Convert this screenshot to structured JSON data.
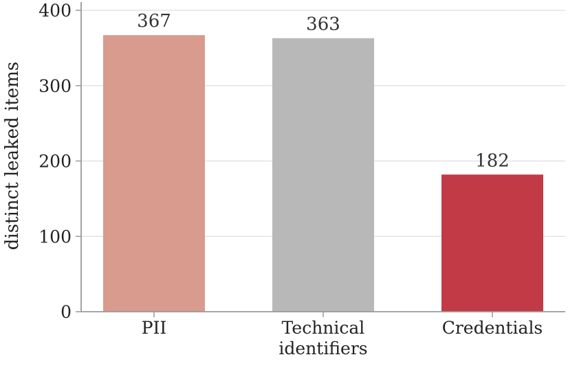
{
  "chart_data": {
    "type": "bar",
    "categories": [
      [
        "PII"
      ],
      [
        "Technical",
        "identifiers"
      ],
      [
        "Credentials"
      ]
    ],
    "values": [
      367,
      363,
      182
    ],
    "data_labels": [
      "367",
      "363",
      "182"
    ],
    "colors": [
      "#d99b8e",
      "#b8b8b8",
      "#c23a46"
    ],
    "xlabel": "",
    "ylabel": "distinct leaked items",
    "ylim": [
      0,
      400
    ],
    "yticks": [
      0,
      100,
      200,
      300,
      400
    ],
    "ytick_labels": [
      "0",
      "100",
      "200",
      "300",
      "400"
    ],
    "grid": "horizontal",
    "legend": "none"
  }
}
